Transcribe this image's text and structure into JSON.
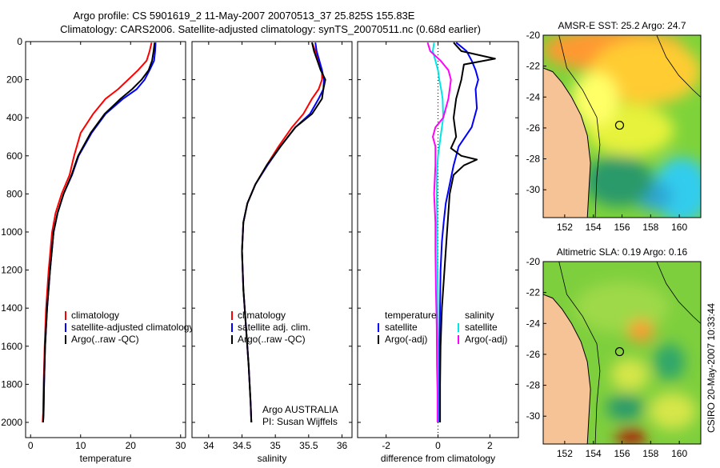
{
  "title_line1": "Argo profile: CS 5901619_2 11-May-2007 20070513_37 25.825S 155.83E",
  "title_line2": "Climatology: CARS2006. Satellite-adjusted climatology: synTS_20070511.nc (0.68d earlier)",
  "side_label": "CSIRO 20-May-2007 10:33:44",
  "colors": {
    "clim": "#ff0000",
    "sat": "#0000ff",
    "argo": "#000000",
    "sat_salt": "#00e5e5",
    "argo_salt": "#ff00ff",
    "land": "#f5c396"
  },
  "chart_data": [
    {
      "type": "line",
      "panel": "temperature",
      "xlabel": "temperature",
      "ylabel": "",
      "xlim": [
        -1,
        31
      ],
      "ylim": [
        0,
        2080
      ],
      "y_reversed": true,
      "x_ticks": [
        0,
        10,
        20,
        30
      ],
      "x_tick_labels": [
        "0",
        "10",
        "20",
        "30"
      ],
      "y_ticks": [
        0,
        200,
        400,
        600,
        800,
        1000,
        1200,
        1400,
        1600,
        1800,
        2000
      ],
      "y_tick_labels": [
        "0",
        "200",
        "400",
        "600",
        "800",
        "1000",
        "1200",
        "1400",
        "1600",
        "1800",
        "2000"
      ],
      "legend": [
        "climatology",
        "satellite-adjusted climatology",
        "Argo(..raw -QC)"
      ],
      "series": [
        {
          "name": "climatology",
          "color_key": "clim",
          "x": [
            24.2,
            23.8,
            23.2,
            21.5,
            19.5,
            17.5,
            15.0,
            12.5,
            10.0,
            8.7,
            7.8,
            6.2,
            5.0,
            4.3,
            3.6,
            3.1,
            2.8,
            2.6,
            2.5,
            2.4
          ],
          "y": [
            5,
            50,
            100,
            150,
            200,
            250,
            300,
            380,
            480,
            600,
            700,
            800,
            900,
            1000,
            1200,
            1400,
            1600,
            1800,
            1950,
            2000
          ]
        },
        {
          "name": "satellite-adjusted climatology",
          "color_key": "sat",
          "x": [
            25.0,
            24.9,
            24.7,
            23.8,
            22.8,
            21.2,
            18.5,
            15.0,
            12.2,
            9.6,
            8.3,
            6.6,
            5.4,
            4.6,
            3.9,
            3.3,
            2.9,
            2.7,
            2.6,
            2.5
          ],
          "y": [
            5,
            50,
            100,
            150,
            200,
            250,
            300,
            380,
            480,
            600,
            700,
            800,
            900,
            1000,
            1200,
            1400,
            1600,
            1800,
            1950,
            2000
          ]
        },
        {
          "name": "Argo(..raw -QC)",
          "color_key": "argo",
          "x": [
            24.8,
            24.6,
            24.3,
            23.6,
            22.2,
            20.3,
            18.0,
            14.8,
            12.0,
            9.5,
            8.2,
            6.6,
            5.4,
            4.6,
            3.9,
            3.3,
            2.9,
            2.7,
            2.6,
            2.5
          ],
          "y": [
            5,
            50,
            100,
            150,
            200,
            250,
            300,
            380,
            480,
            600,
            700,
            800,
            900,
            1000,
            1200,
            1400,
            1600,
            1800,
            1950,
            2000
          ]
        }
      ]
    },
    {
      "type": "line",
      "panel": "salinity",
      "xlabel": "salinity",
      "ylabel": "",
      "xlim": [
        33.75,
        36.15
      ],
      "ylim": [
        0,
        2080
      ],
      "y_reversed": true,
      "x_ticks": [
        34,
        34.5,
        35,
        35.5,
        36
      ],
      "x_tick_labels": [
        "34",
        "34.5",
        "35",
        "35.5",
        "36"
      ],
      "legend": [
        "climatology",
        "satellite adj. clim.",
        "Argo(..raw -QC)"
      ],
      "annotations": [
        "Argo AUSTRALIA",
        "PI: Susan Wijffels"
      ],
      "series": [
        {
          "name": "climatology",
          "color_key": "clim",
          "x": [
            35.55,
            35.6,
            35.65,
            35.7,
            35.7,
            35.65,
            35.55,
            35.42,
            35.25,
            35.05,
            34.87,
            34.7,
            34.58,
            34.52,
            34.5,
            34.52,
            34.56,
            34.6,
            34.63,
            34.64
          ],
          "y": [
            5,
            50,
            100,
            150,
            200,
            250,
            300,
            380,
            450,
            550,
            650,
            750,
            850,
            950,
            1100,
            1300,
            1500,
            1700,
            1900,
            2000
          ]
        },
        {
          "name": "satellite adj. clim.",
          "color_key": "sat",
          "x": [
            35.6,
            35.62,
            35.66,
            35.7,
            35.73,
            35.72,
            35.65,
            35.52,
            35.3,
            35.08,
            34.88,
            34.7,
            34.58,
            34.52,
            34.5,
            34.52,
            34.56,
            34.6,
            34.63,
            34.64
          ],
          "y": [
            5,
            50,
            100,
            150,
            200,
            250,
            300,
            380,
            450,
            550,
            650,
            750,
            850,
            950,
            1100,
            1300,
            1500,
            1700,
            1900,
            2000
          ]
        },
        {
          "name": "Argo(..raw -QC)",
          "color_key": "argo",
          "x": [
            35.55,
            35.58,
            35.63,
            35.68,
            35.75,
            35.72,
            35.7,
            35.55,
            35.3,
            35.08,
            34.87,
            34.7,
            34.58,
            34.52,
            34.5,
            34.52,
            34.56,
            34.6,
            34.63,
            34.64
          ],
          "y": [
            5,
            50,
            100,
            150,
            200,
            250,
            300,
            380,
            450,
            550,
            650,
            750,
            850,
            950,
            1100,
            1300,
            1500,
            1700,
            1900,
            2000
          ]
        }
      ]
    },
    {
      "type": "line",
      "panel": "difference",
      "xlabel": "difference from climatology",
      "ylabel": "",
      "xlim": [
        -3.1,
        3.1
      ],
      "ylim": [
        0,
        2080
      ],
      "y_reversed": true,
      "x_ticks": [
        -2,
        0,
        2
      ],
      "x_tick_labels": [
        "-2",
        "0",
        "2"
      ],
      "legend_groups": [
        {
          "header": "temperature",
          "items": [
            "satellite",
            "Argo(-adj)"
          ]
        },
        {
          "header": "salinity",
          "items": [
            "satellite",
            "Argo(-adj)"
          ]
        }
      ],
      "series": [
        {
          "name": "satellite",
          "group": "temperature",
          "color_key": "sat",
          "x": [
            0.7,
            1.1,
            1.3,
            1.45,
            1.55,
            1.45,
            1.5,
            1.3,
            0.8,
            0.6,
            0.45,
            0.3,
            0.22,
            0.15,
            0.1,
            0.08,
            0.06,
            0.05,
            0.05,
            0.05
          ],
          "y": [
            5,
            50,
            100,
            150,
            200,
            250,
            350,
            450,
            550,
            650,
            750,
            850,
            950,
            1050,
            1200,
            1400,
            1600,
            1800,
            1950,
            2000
          ]
        },
        {
          "name": "Argo(-adj)",
          "group": "temperature",
          "color_key": "argo",
          "x": [
            0.6,
            0.9,
            2.2,
            1.0,
            0.9,
            0.7,
            0.6,
            0.7,
            0.5,
            0.9,
            1.5,
            1.0,
            0.6,
            0.45,
            0.35,
            0.25,
            0.15,
            0.1,
            0.08,
            0.08
          ],
          "y": [
            5,
            50,
            90,
            120,
            200,
            300,
            400,
            500,
            560,
            600,
            620,
            650,
            700,
            800,
            1000,
            1200,
            1400,
            1600,
            1800,
            2000
          ]
        },
        {
          "name": "satellite",
          "group": "salinity",
          "color_key": "sat_salt",
          "x": [
            -0.15,
            -0.2,
            -0.1,
            0.0,
            0.05,
            0.12,
            0.18,
            0.2,
            0.1,
            0.0,
            -0.05,
            -0.05,
            -0.04,
            -0.03,
            -0.02,
            0.0,
            0.0,
            0.0,
            0.0,
            0.0
          ],
          "y": [
            5,
            50,
            100,
            150,
            200,
            250,
            300,
            400,
            500,
            600,
            700,
            800,
            900,
            1000,
            1200,
            1400,
            1600,
            1800,
            1950,
            2000
          ]
        },
        {
          "name": "Argo(-adj)",
          "group": "salinity",
          "color_key": "argo_salt",
          "x": [
            -0.4,
            -0.3,
            0.1,
            0.4,
            0.5,
            0.4,
            0.2,
            -0.1,
            -0.2,
            -0.1,
            -0.1,
            -0.15,
            -0.1,
            -0.1,
            -0.08,
            -0.05,
            -0.04,
            -0.02,
            -0.02,
            -0.02
          ],
          "y": [
            5,
            50,
            100,
            150,
            200,
            300,
            400,
            450,
            500,
            550,
            650,
            800,
            950,
            1100,
            1300,
            1500,
            1700,
            1850,
            1950,
            2000
          ]
        }
      ]
    },
    {
      "type": "heatmap",
      "panel": "sst_map",
      "title": "AMSR-E SST: 25.2 Argo: 24.7",
      "xlim": [
        150.5,
        161.5
      ],
      "ylim": [
        -31.8,
        -20
      ],
      "x_ticks": [
        152,
        154,
        156,
        158,
        160
      ],
      "x_tick_labels": [
        "152",
        "154",
        "156",
        "158",
        "160"
      ],
      "y_ticks": [
        -20,
        -22,
        -24,
        -26,
        -28,
        -30
      ],
      "y_tick_labels": [
        "-20",
        "-22",
        "-24",
        "-26",
        "-28",
        "-30"
      ],
      "marker": {
        "lon": 155.83,
        "lat": -25.825
      }
    },
    {
      "type": "heatmap",
      "panel": "sla_map",
      "title": "Altimetric SLA: 0.19 Argo: 0.16",
      "xlim": [
        150.5,
        161.5
      ],
      "ylim": [
        -31.8,
        -20
      ],
      "x_ticks": [
        152,
        154,
        156,
        158,
        160
      ],
      "x_tick_labels": [
        "152",
        "154",
        "156",
        "158",
        "160"
      ],
      "y_ticks": [
        -20,
        -22,
        -24,
        -26,
        -28,
        -30
      ],
      "y_tick_labels": [
        "-20",
        "-22",
        "-24",
        "-26",
        "-28",
        "-30"
      ],
      "marker": {
        "lon": 155.83,
        "lat": -25.825
      }
    }
  ]
}
